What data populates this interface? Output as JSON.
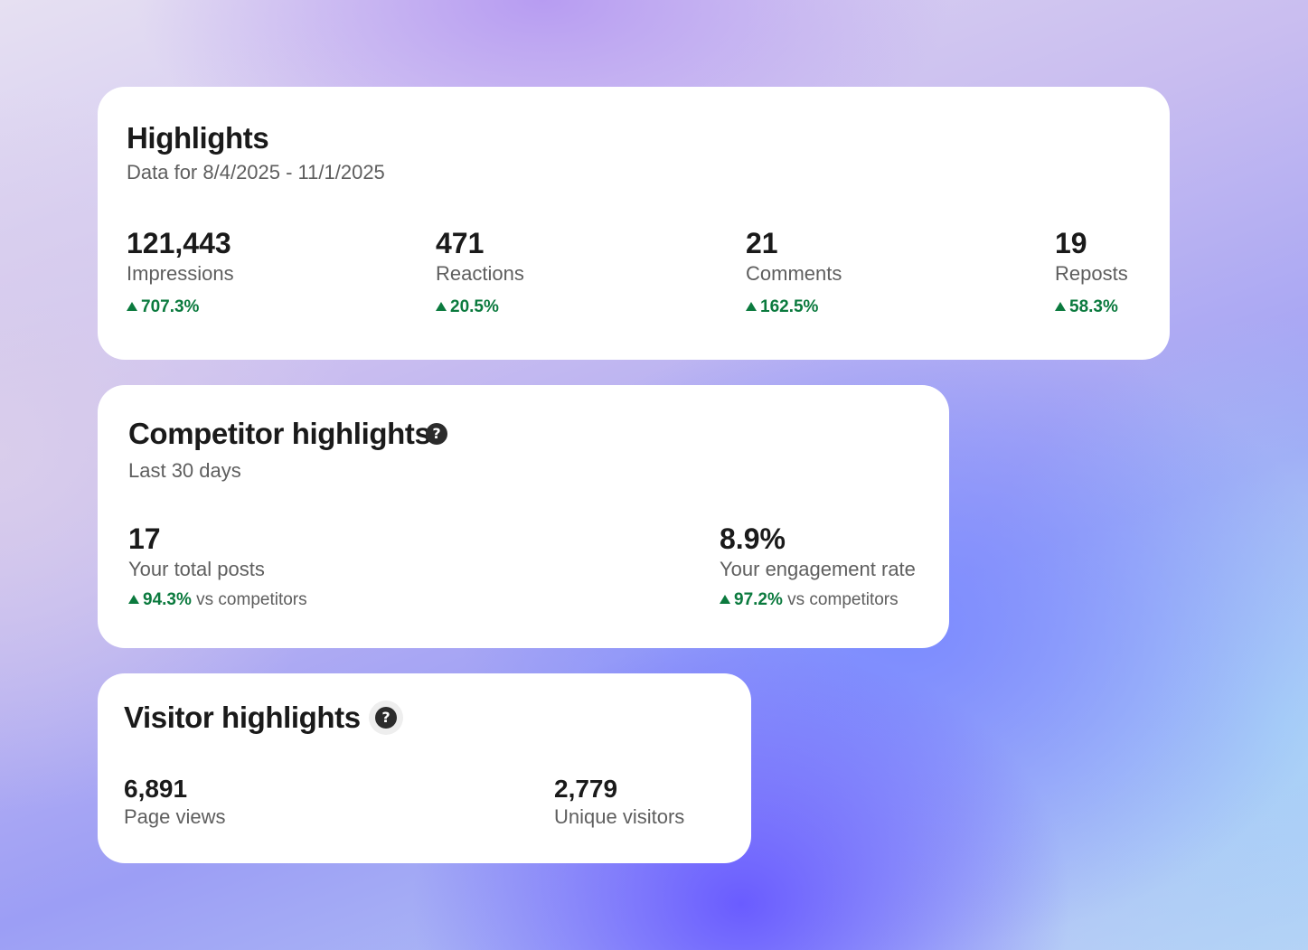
{
  "highlights": {
    "title": "Highlights",
    "subtitle": "Data for 8/4/2025 - 11/1/2025",
    "metrics": [
      {
        "value": "121,443",
        "label": "Impressions",
        "change": "707.3%"
      },
      {
        "value": "471",
        "label": "Reactions",
        "change": "20.5%"
      },
      {
        "value": "21",
        "label": "Comments",
        "change": "162.5%"
      },
      {
        "value": "19",
        "label": "Reposts",
        "change": "58.3%"
      }
    ]
  },
  "competitor": {
    "title": "Competitor highlights",
    "help_icon": "?",
    "subtitle": "Last 30 days",
    "metrics": [
      {
        "value": "17",
        "label": "Your total posts",
        "change": "94.3%",
        "comparison": "vs competitors"
      },
      {
        "value": "8.9%",
        "label": "Your engagement rate",
        "change": "97.2%",
        "comparison": "vs competitors"
      }
    ]
  },
  "visitor": {
    "title": "Visitor highlights",
    "help_icon": "?",
    "metrics": [
      {
        "value": "6,891",
        "label": "Page views"
      },
      {
        "value": "2,779",
        "label": "Unique visitors"
      }
    ]
  },
  "colors": {
    "positive": "#0b7a3e",
    "card": "#ffffff",
    "text_primary": "#1a1a1a",
    "text_secondary": "#5e5e5e"
  },
  "icons": {
    "change_up": "up-triangle-icon",
    "help": "question-circle-icon"
  }
}
